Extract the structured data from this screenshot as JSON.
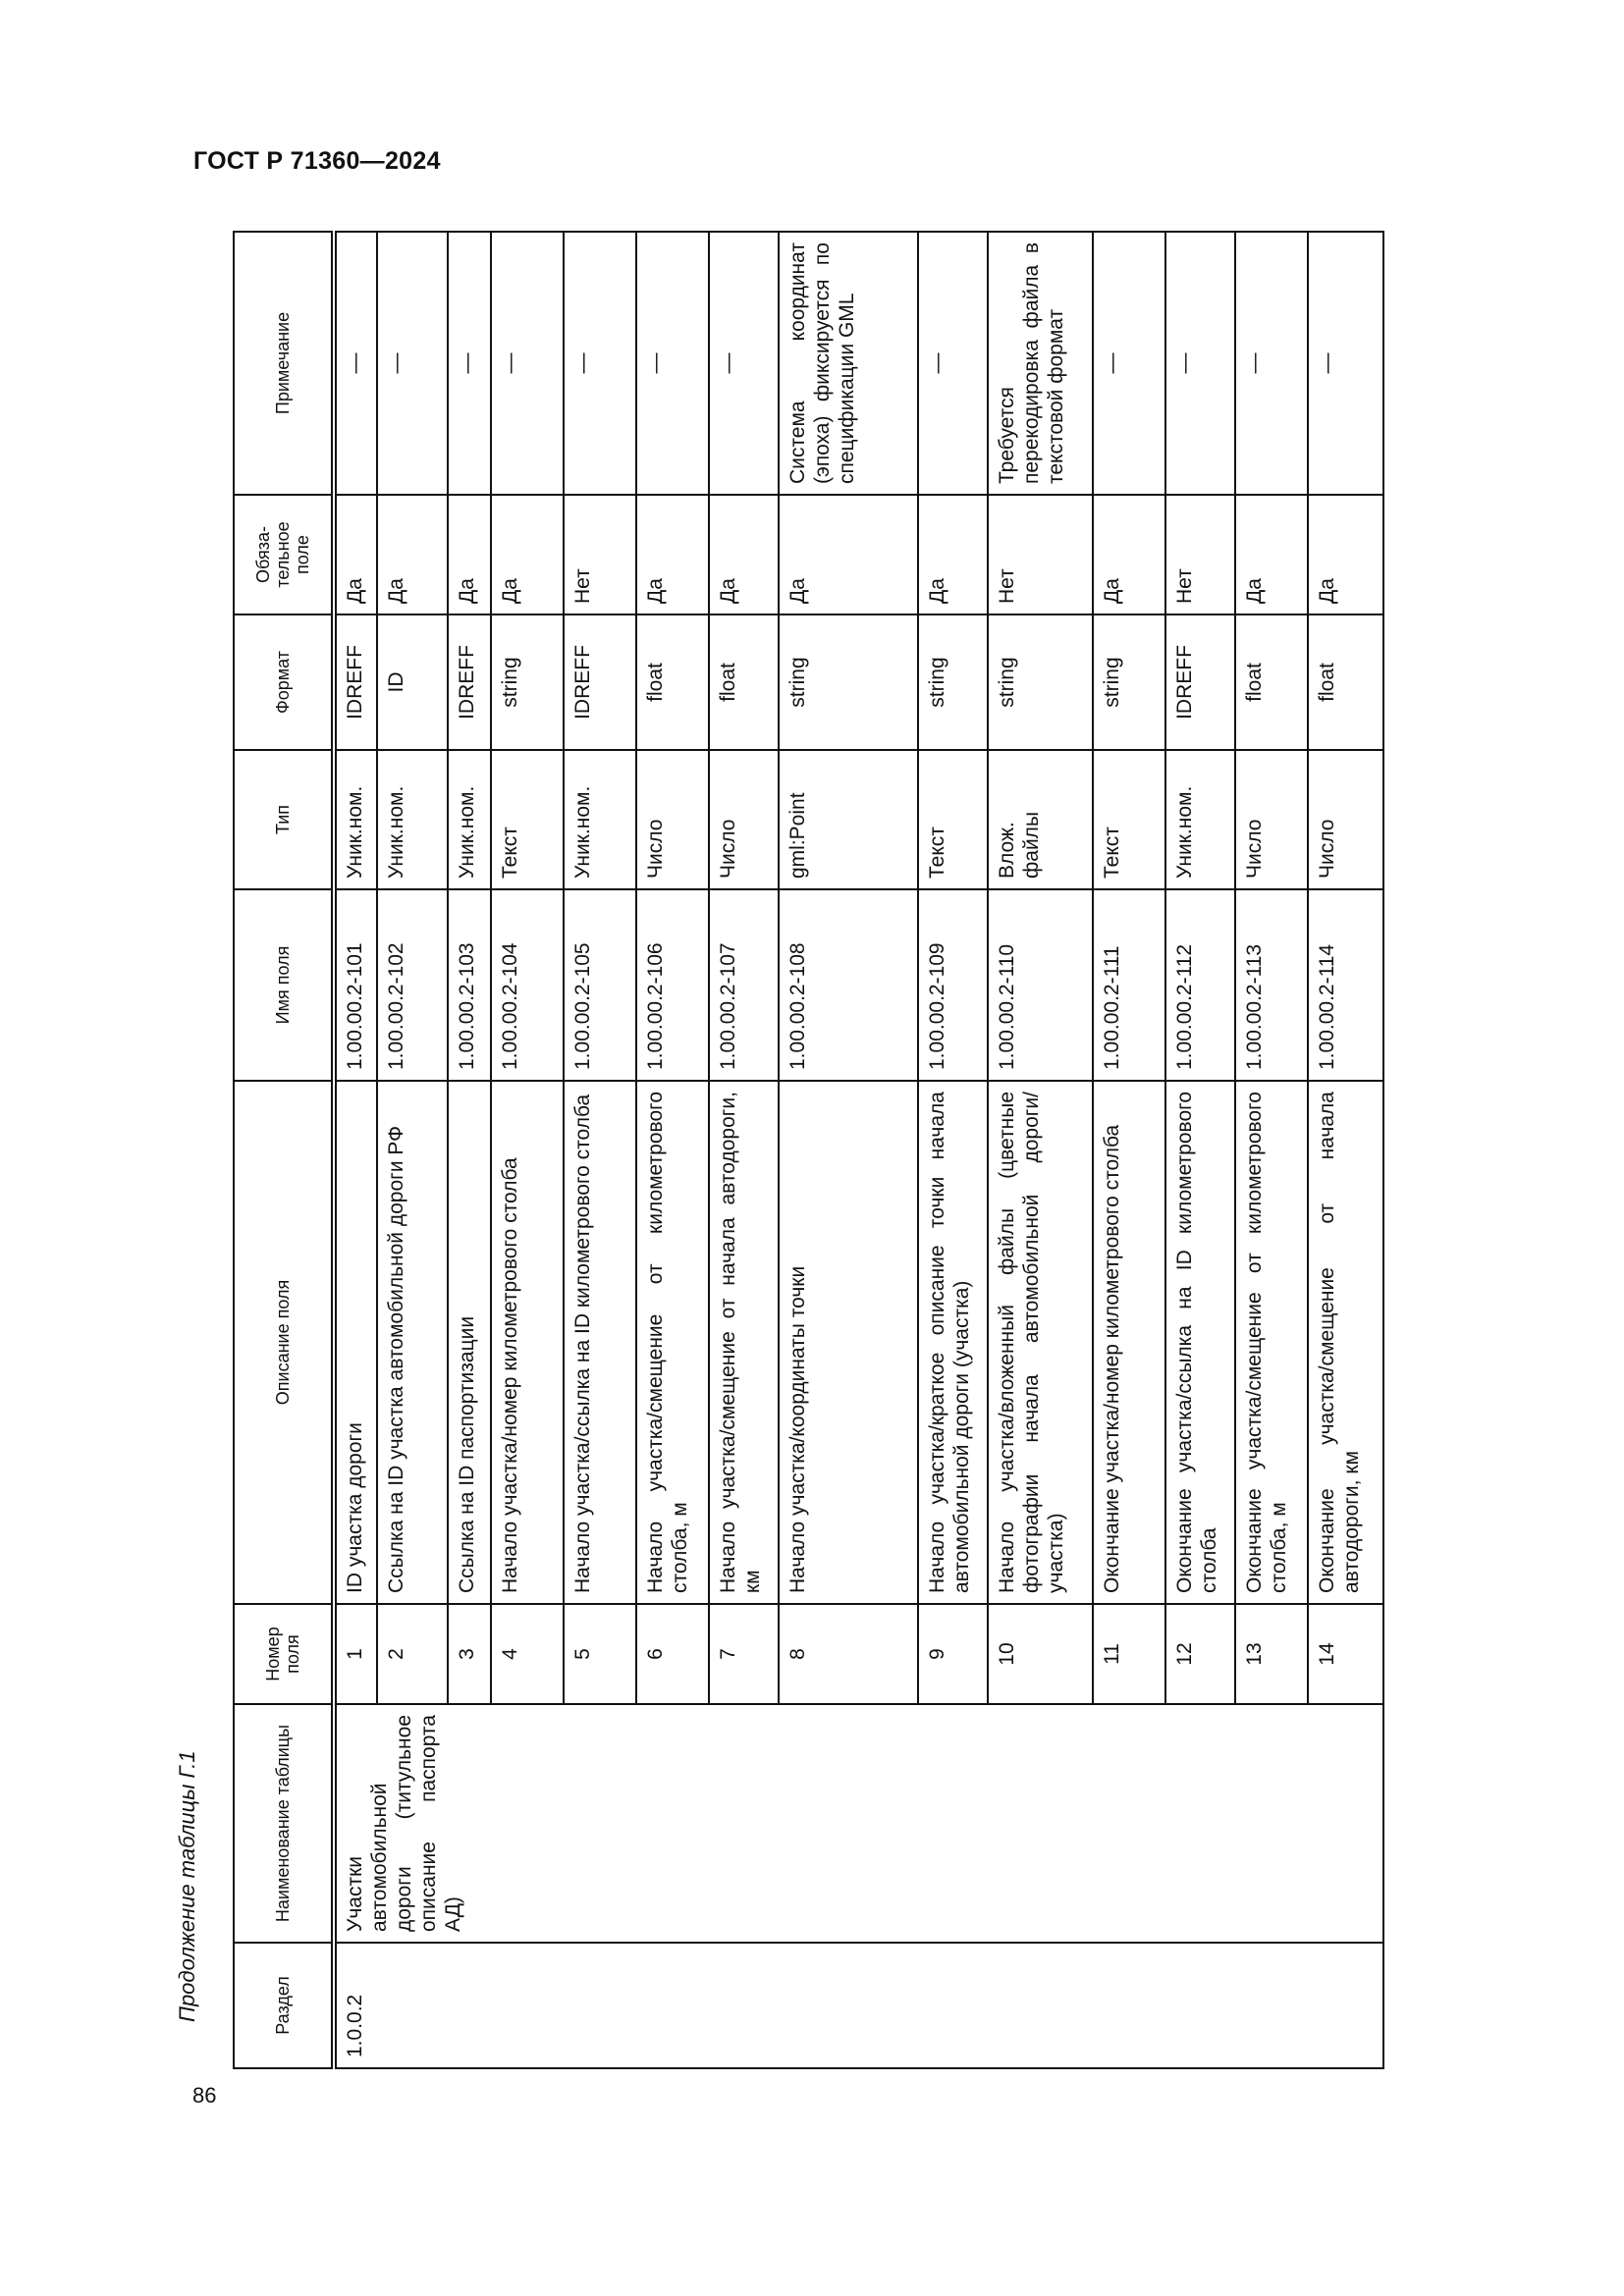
{
  "document": {
    "header": "ГОСТ Р 71360—2024",
    "caption": "Продолжение таблицы Г.1",
    "page_number": "86"
  },
  "table": {
    "columns": [
      "Раздел",
      "Наименование таблицы",
      "Номер поля",
      "Описание поля",
      "Имя поля",
      "Тип",
      "Формат",
      "Обяза-тельное поле",
      "Примечание"
    ],
    "section": "1.0.0.2",
    "table_name": "Участки автомобильной дороги (титульное описание паспорта АД)",
    "rows": [
      {
        "num": "1",
        "desc": "ID участка дороги",
        "name": "1.00.00.2-101",
        "type": "Уник.ном.",
        "format": "IDREFF",
        "required": "Да",
        "note": "—"
      },
      {
        "num": "2",
        "desc": "Ссылка на ID участка автомобильной дороги РФ",
        "name": "1.00.00.2-102",
        "type": "Уник.ном.",
        "format": "ID",
        "required": "Да",
        "note": "—"
      },
      {
        "num": "3",
        "desc": "Ссылка на ID паспортизации",
        "name": "1.00.00.2-103",
        "type": "Уник.ном.",
        "format": "IDREFF",
        "required": "Да",
        "note": "—"
      },
      {
        "num": "4",
        "desc": "Начало участка/номер километрового столба",
        "name": "1.00.00.2-104",
        "type": "Текст",
        "format": "string",
        "required": "Да",
        "note": "—"
      },
      {
        "num": "5",
        "desc": "Начало участка/ссылка на ID километрового столба",
        "name": "1.00.00.2-105",
        "type": "Уник.ном.",
        "format": "IDREFF",
        "required": "Нет",
        "note": "—"
      },
      {
        "num": "6",
        "desc": "Начало участка/смещение от километрового столба, м",
        "name": "1.00.00.2-106",
        "type": "Число",
        "format": "float",
        "required": "Да",
        "note": "—"
      },
      {
        "num": "7",
        "desc": "Начало участка/смещение от начала автодороги, км",
        "name": "1.00.00.2-107",
        "type": "Число",
        "format": "float",
        "required": "Да",
        "note": "—"
      },
      {
        "num": "8",
        "desc": "Начало участка/координаты точки",
        "name": "1.00.00.2-108",
        "type": "gml:Point",
        "format": "string",
        "required": "Да",
        "note": "Система координат (эпоха) фиксируется по спецификации GML"
      },
      {
        "num": "9",
        "desc": "Начало участка/краткое описание точки начала автомобильной дороги (участка)",
        "name": "1.00.00.2-109",
        "type": "Текст",
        "format": "string",
        "required": "Да",
        "note": "—"
      },
      {
        "num": "10",
        "desc": "Начало участка/вложенный файлы (цветные фотографии начала автомобильной дороги/участка)",
        "name": "1.00.00.2-110",
        "type": "Влож. файлы",
        "format": "string",
        "required": "Нет",
        "note": "Требуется перекодировка файла в текстовой формат"
      },
      {
        "num": "11",
        "desc": "Окончание участка/номер километрового столба",
        "name": "1.00.00.2-111",
        "type": "Текст",
        "format": "string",
        "required": "Да",
        "note": "—"
      },
      {
        "num": "12",
        "desc": "Окончание участка/ссылка на ID километрового столба",
        "name": "1.00.00.2-112",
        "type": "Уник.ном.",
        "format": "IDREFF",
        "required": "Нет",
        "note": "—"
      },
      {
        "num": "13",
        "desc": "Окончание участка/смещение от километрового столба, м",
        "name": "1.00.00.2-113",
        "type": "Число",
        "format": "float",
        "required": "Да",
        "note": "—"
      },
      {
        "num": "14",
        "desc": "Окончание участка/смещение от начала автодороги, км",
        "name": "1.00.00.2-114",
        "type": "Число",
        "format": "float",
        "required": "Да",
        "note": "—"
      }
    ]
  }
}
